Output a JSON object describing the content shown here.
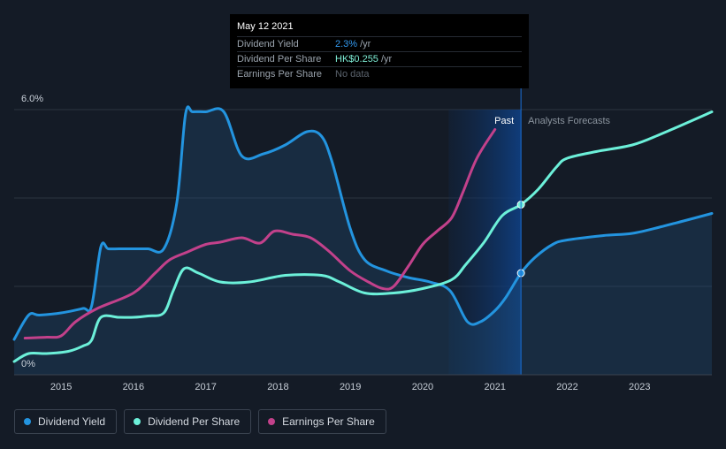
{
  "tooltip": {
    "date": "May 12 2021",
    "rows": [
      {
        "label": "Dividend Yield",
        "value": "2.3%",
        "unit": "/yr"
      },
      {
        "label": "Dividend Per Share",
        "value": "HK$0.255",
        "unit": "/yr"
      },
      {
        "label": "Earnings Per Share",
        "value": "No data"
      }
    ]
  },
  "legend": [
    {
      "label": "Dividend Yield",
      "color": "#2394df"
    },
    {
      "label": "Dividend Per Share",
      "color": "#6cf0d9"
    },
    {
      "label": "Earnings Per Share",
      "color": "#c2418b"
    }
  ],
  "chart_data": {
    "type": "line",
    "y_axis": {
      "min": 0,
      "max": 6,
      "tick_labels": [
        "6.0%",
        "0%"
      ],
      "tick_values": [
        6,
        0
      ]
    },
    "x_axis": {
      "min": 2014.35,
      "max": 2024.0,
      "tick_labels": [
        "2015",
        "2016",
        "2017",
        "2018",
        "2019",
        "2020",
        "2021",
        "2022",
        "2023"
      ],
      "tick_values": [
        2015,
        2016,
        2017,
        2018,
        2019,
        2020,
        2021,
        2022,
        2023
      ]
    },
    "region_labels": {
      "past": "Past",
      "forecast": "Analysts Forecasts"
    },
    "past_region": {
      "start": 2020.36,
      "end": 2021.36
    },
    "series": [
      {
        "name": "Dividend Yield",
        "color": "#2394df",
        "fill": true,
        "points": [
          [
            2014.35,
            0.8
          ],
          [
            2014.55,
            1.35
          ],
          [
            2014.7,
            1.35
          ],
          [
            2015.0,
            1.4
          ],
          [
            2015.3,
            1.5
          ],
          [
            2015.42,
            1.55
          ],
          [
            2015.55,
            2.9
          ],
          [
            2015.65,
            2.85
          ],
          [
            2015.8,
            2.85
          ],
          [
            2016.0,
            2.85
          ],
          [
            2016.2,
            2.85
          ],
          [
            2016.42,
            2.85
          ],
          [
            2016.6,
            3.9
          ],
          [
            2016.72,
            5.9
          ],
          [
            2016.82,
            5.95
          ],
          [
            2017.0,
            5.95
          ],
          [
            2017.25,
            5.95
          ],
          [
            2017.5,
            4.95
          ],
          [
            2017.8,
            5.0
          ],
          [
            2018.1,
            5.2
          ],
          [
            2018.4,
            5.5
          ],
          [
            2018.6,
            5.4
          ],
          [
            2018.75,
            4.8
          ],
          [
            2019.0,
            3.3
          ],
          [
            2019.2,
            2.6
          ],
          [
            2019.5,
            2.35
          ],
          [
            2019.8,
            2.2
          ],
          [
            2020.1,
            2.1
          ],
          [
            2020.38,
            1.9
          ],
          [
            2020.62,
            1.2
          ],
          [
            2020.8,
            1.2
          ],
          [
            2021.0,
            1.45
          ],
          [
            2021.15,
            1.75
          ],
          [
            2021.36,
            2.3
          ],
          [
            2021.55,
            2.65
          ],
          [
            2021.8,
            2.95
          ],
          [
            2022.0,
            3.05
          ],
          [
            2022.5,
            3.15
          ],
          [
            2022.9,
            3.2
          ],
          [
            2023.3,
            3.35
          ],
          [
            2024.0,
            3.65
          ]
        ]
      },
      {
        "name": "Dividend Per Share",
        "color": "#6cf0d9",
        "fill": false,
        "points": [
          [
            2014.35,
            0.3
          ],
          [
            2014.55,
            0.48
          ],
          [
            2014.8,
            0.48
          ],
          [
            2015.1,
            0.53
          ],
          [
            2015.3,
            0.65
          ],
          [
            2015.42,
            0.78
          ],
          [
            2015.55,
            1.3
          ],
          [
            2015.8,
            1.3
          ],
          [
            2016.0,
            1.3
          ],
          [
            2016.2,
            1.33
          ],
          [
            2016.42,
            1.4
          ],
          [
            2016.55,
            1.9
          ],
          [
            2016.7,
            2.4
          ],
          [
            2016.9,
            2.3
          ],
          [
            2017.2,
            2.1
          ],
          [
            2017.6,
            2.1
          ],
          [
            2018.1,
            2.25
          ],
          [
            2018.6,
            2.25
          ],
          [
            2018.85,
            2.1
          ],
          [
            2019.2,
            1.85
          ],
          [
            2019.6,
            1.85
          ],
          [
            2020.0,
            1.95
          ],
          [
            2020.4,
            2.15
          ],
          [
            2020.6,
            2.5
          ],
          [
            2020.85,
            3.0
          ],
          [
            2021.1,
            3.6
          ],
          [
            2021.36,
            3.85
          ],
          [
            2021.6,
            4.2
          ],
          [
            2021.85,
            4.7
          ],
          [
            2022.0,
            4.9
          ],
          [
            2022.4,
            5.05
          ],
          [
            2022.9,
            5.2
          ],
          [
            2023.3,
            5.45
          ],
          [
            2024.0,
            5.95
          ]
        ]
      },
      {
        "name": "Earnings Per Share",
        "color": "#c2418b",
        "fill": false,
        "points": [
          [
            2014.5,
            0.83
          ],
          [
            2014.8,
            0.85
          ],
          [
            2015.0,
            0.88
          ],
          [
            2015.2,
            1.2
          ],
          [
            2015.5,
            1.5
          ],
          [
            2016.0,
            1.85
          ],
          [
            2016.3,
            2.3
          ],
          [
            2016.5,
            2.6
          ],
          [
            2016.75,
            2.78
          ],
          [
            2017.0,
            2.95
          ],
          [
            2017.2,
            3.0
          ],
          [
            2017.5,
            3.1
          ],
          [
            2017.75,
            2.98
          ],
          [
            2017.95,
            3.25
          ],
          [
            2018.2,
            3.18
          ],
          [
            2018.45,
            3.1
          ],
          [
            2018.7,
            2.8
          ],
          [
            2019.0,
            2.35
          ],
          [
            2019.25,
            2.1
          ],
          [
            2019.45,
            1.95
          ],
          [
            2019.6,
            2.0
          ],
          [
            2019.8,
            2.45
          ],
          [
            2020.0,
            2.95
          ],
          [
            2020.2,
            3.25
          ],
          [
            2020.4,
            3.55
          ],
          [
            2020.55,
            4.1
          ],
          [
            2020.75,
            4.9
          ],
          [
            2021.0,
            5.55
          ]
        ]
      }
    ],
    "markers": [
      {
        "series": "Dividend Per Share",
        "x": 2021.36,
        "y": 3.85
      },
      {
        "series": "Dividend Yield",
        "x": 2021.36,
        "y": 2.3
      }
    ]
  }
}
